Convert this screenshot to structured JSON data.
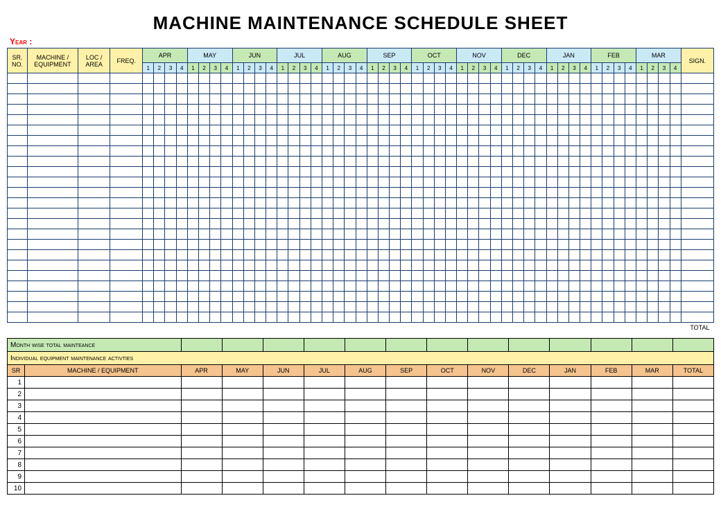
{
  "title": "MACHINE MAINTENANCE SCHEDULE SHEET",
  "year_label": "Year :",
  "main_header": {
    "sr_no": "SR. NO.",
    "machine": "MACHINE / EQUIPMENT",
    "loc": "LOC / AREA",
    "freq": "FREQ.",
    "sign": "SIGN."
  },
  "months": [
    "APR",
    "MAY",
    "JUN",
    "JUL",
    "AUG",
    "SEP",
    "OCT",
    "NOV",
    "DEC",
    "JAN",
    "FEB",
    "MAR"
  ],
  "weeks": [
    "1",
    "2",
    "3",
    "4"
  ],
  "main_body_rows": 24,
  "total_label": "TOTAL",
  "colors": {
    "yellow": "#fff2a8",
    "green": "#c5e9b4",
    "blue": "#c9e9f5",
    "orange": "#f5c38e",
    "border": "#1a3a6e",
    "sum_border": "#000000",
    "bg": "#ffffff"
  },
  "month_header_colors": [
    "#c5e9b4",
    "#c9e9f5",
    "#c5e9b4",
    "#c9e9f5",
    "#c5e9b4",
    "#c9e9f5",
    "#c5e9b4",
    "#c9e9f5",
    "#c5e9b4",
    "#c9e9f5",
    "#c5e9b4",
    "#c9e9f5"
  ],
  "week_header_colors": [
    "#c9e9f5",
    "#c5e9b4",
    "#c9e9f5",
    "#c5e9b4",
    "#c9e9f5",
    "#c5e9b4",
    "#c9e9f5",
    "#c5e9b4",
    "#c9e9f5",
    "#c5e9b4",
    "#c9e9f5",
    "#c5e9b4"
  ],
  "summary": {
    "month_wise_label": "Month wise total mainteance",
    "individual_label": "Individual equipment maintenance activties",
    "cols": {
      "sr": "SR",
      "machine": "MACHINE / EQUIPMENT",
      "total": "TOTAL"
    },
    "month_cols": [
      "APR",
      "MAY",
      "JUN",
      "JUL",
      "AUG",
      "SEP",
      "OCT",
      "NOV",
      "DEC",
      "JAN",
      "FEB",
      "MAR"
    ],
    "rows": [
      1,
      2,
      3,
      4,
      5,
      6,
      7,
      8,
      9,
      10
    ]
  },
  "layout": {
    "main_col_widths": {
      "sr": 28,
      "machine": 70,
      "loc": 45,
      "freq": 45,
      "week": 15.6,
      "sign": 45
    },
    "summary_col_widths": {
      "sr": 25,
      "machine": 225,
      "month": 59,
      "total": 59
    }
  }
}
